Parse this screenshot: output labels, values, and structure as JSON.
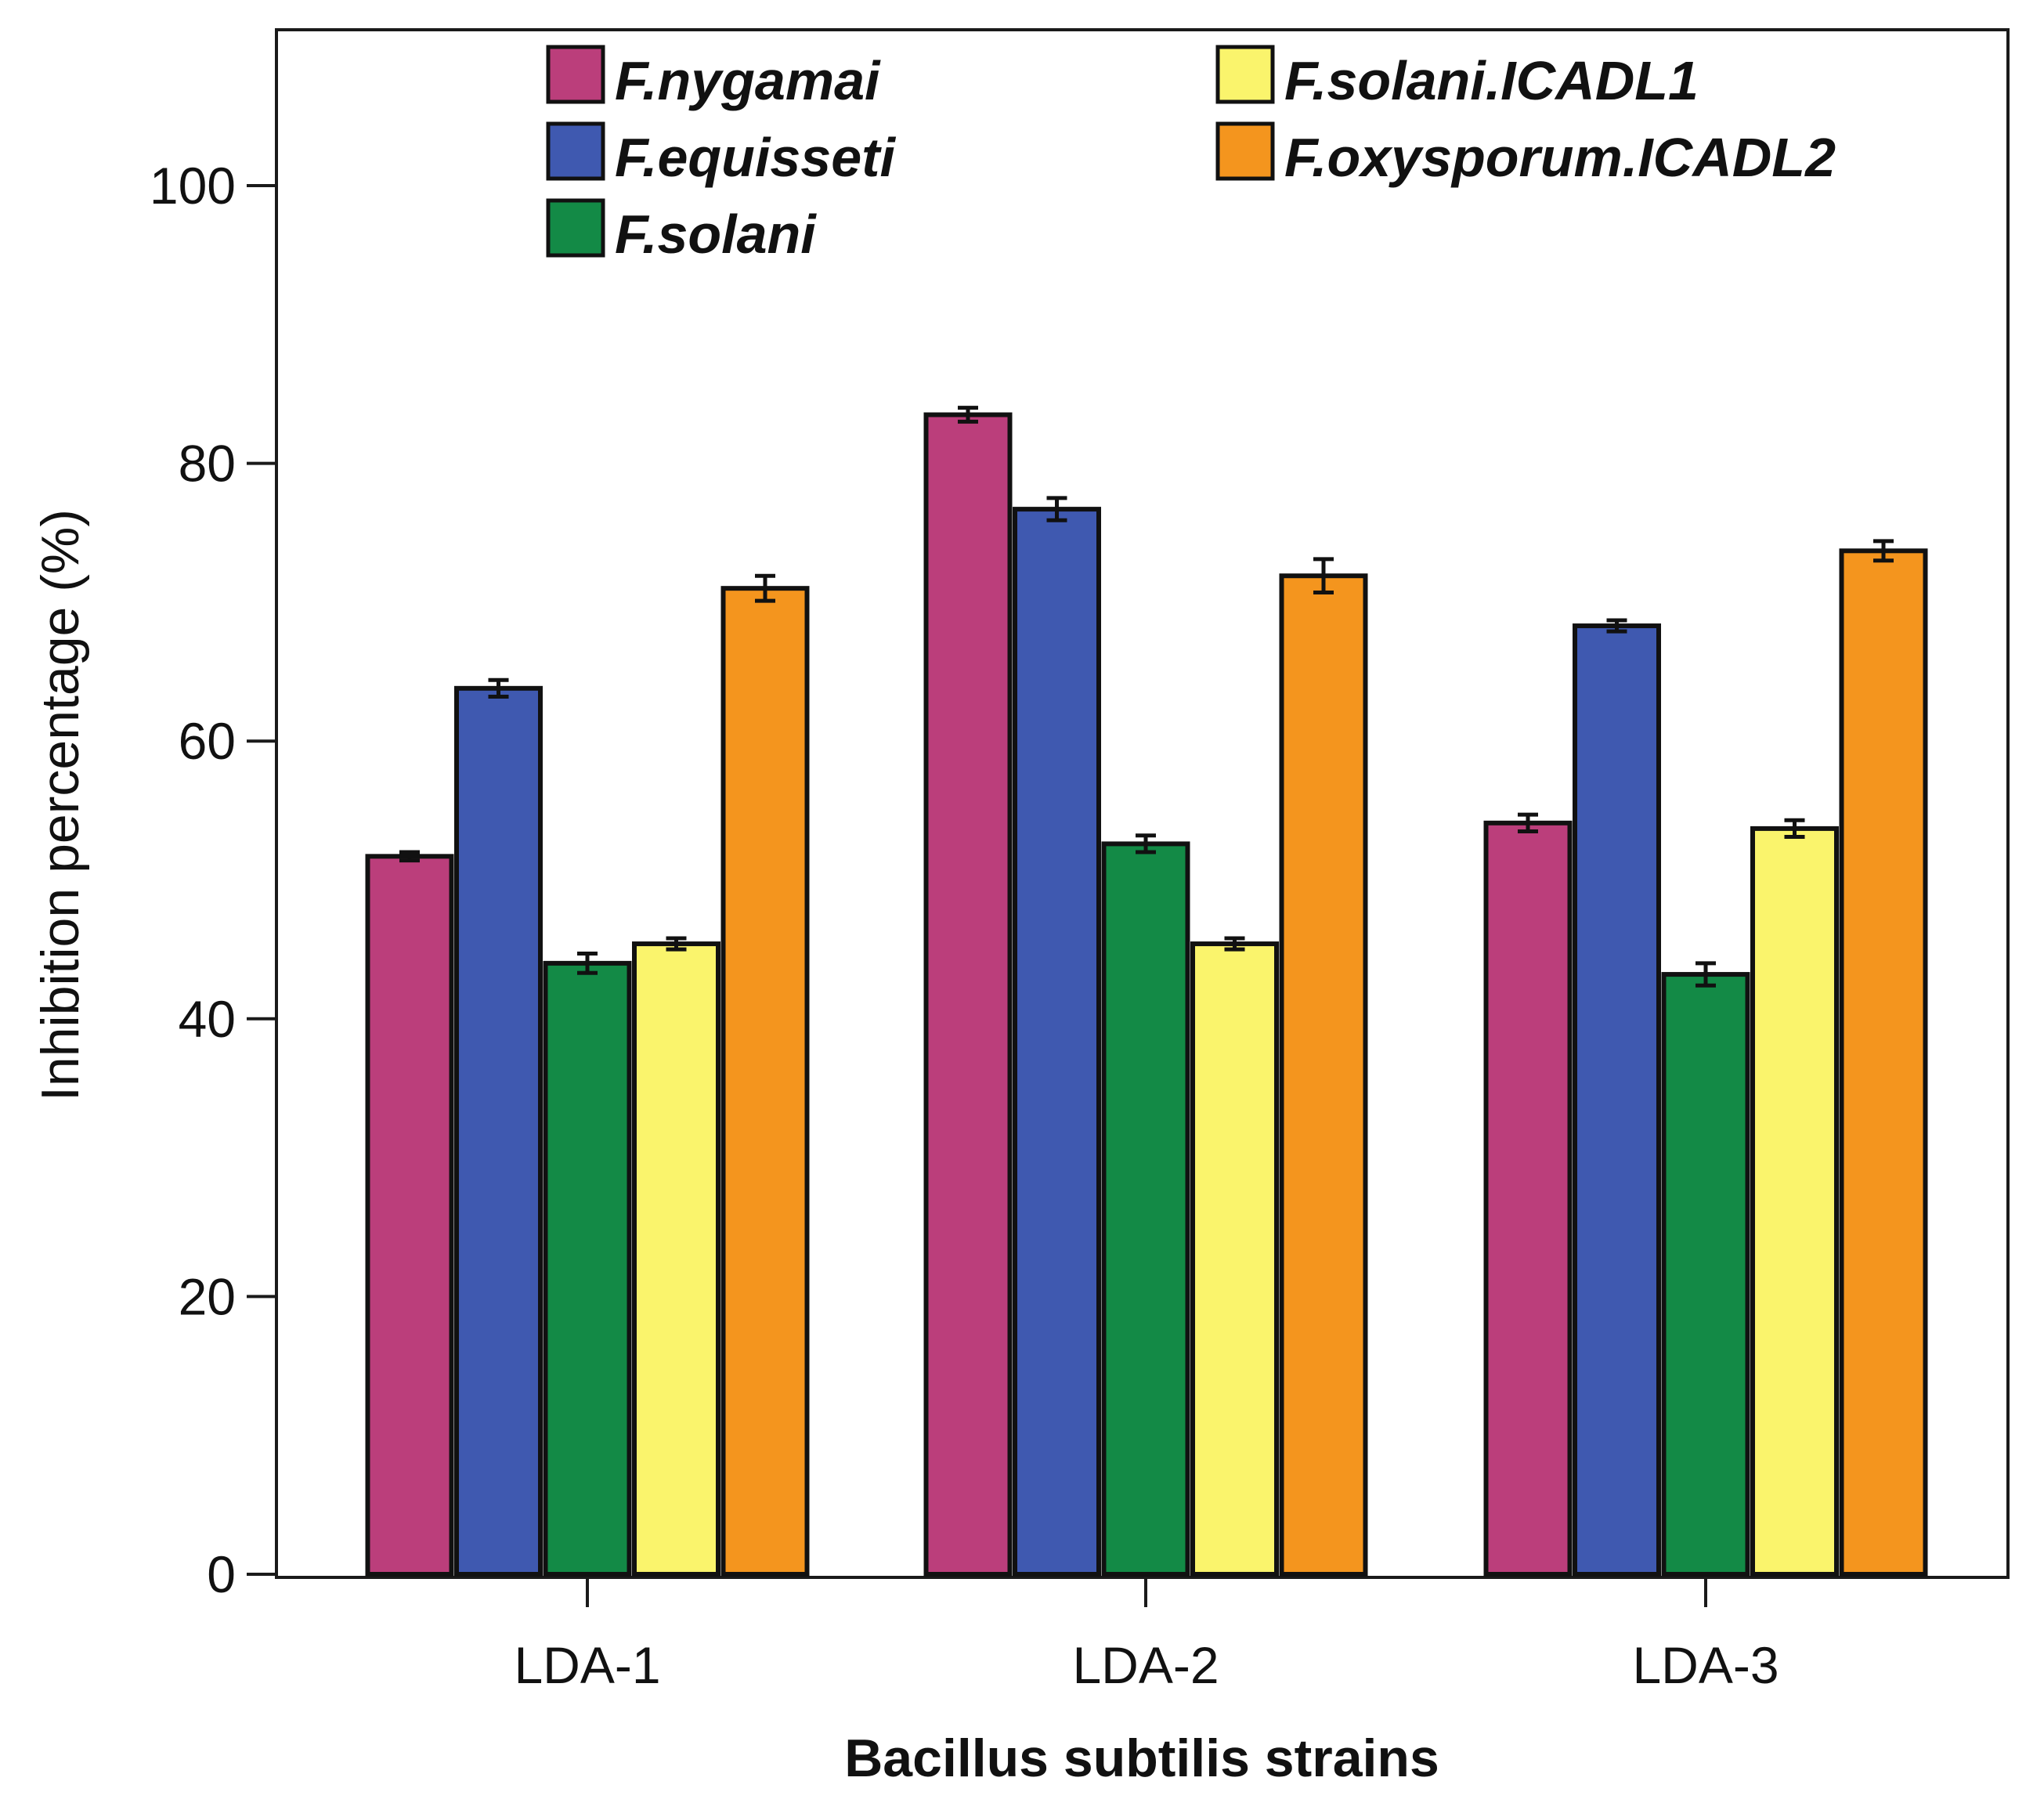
{
  "chart_data": {
    "type": "bar",
    "xlabel": "Bacillus subtilis strains",
    "ylabel": "Inhibition percentage (%)",
    "ylim": [
      0,
      110
    ],
    "yticks": [
      0,
      20,
      40,
      60,
      80,
      100
    ],
    "categories": [
      "LDA-1",
      "LDA-2",
      "LDA-3"
    ],
    "series": [
      {
        "name": "F.nygamai",
        "color": "#bb3e7b",
        "values": [
          51.7,
          83.5,
          54.1
        ],
        "errors": [
          0.3,
          0.5,
          0.6
        ]
      },
      {
        "name": "F.equisseti",
        "color": "#3f59b0",
        "values": [
          63.8,
          76.7,
          68.3
        ],
        "errors": [
          0.6,
          0.8,
          0.4
        ]
      },
      {
        "name": "F.solani",
        "color": "#138a46",
        "values": [
          44.0,
          52.6,
          43.2
        ],
        "errors": [
          0.7,
          0.6,
          0.8
        ]
      },
      {
        "name": "F.solani.ICADL1",
        "color": "#faf46c",
        "values": [
          45.4,
          45.4,
          53.7
        ],
        "errors": [
          0.4,
          0.4,
          0.6
        ]
      },
      {
        "name": "F.oxysporum.ICADL2",
        "color": "#f4951e",
        "values": [
          71.0,
          71.9,
          73.7
        ],
        "errors": [
          0.9,
          1.2,
          0.7
        ]
      }
    ],
    "legend_position": "top"
  }
}
